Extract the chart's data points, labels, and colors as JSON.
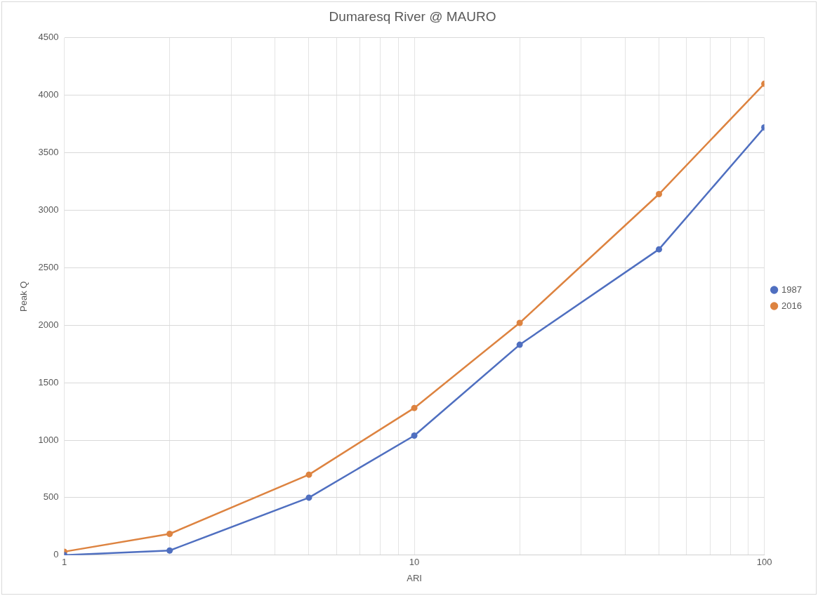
{
  "chart_data": {
    "type": "line",
    "title": "Dumaresq River @ MAURO",
    "xlabel": "ARI",
    "ylabel": "Peak Q",
    "x": [
      1,
      2,
      5,
      10,
      20,
      50,
      100
    ],
    "series": [
      {
        "name": "1987",
        "color": "#4f6fc0",
        "values": [
          0,
          40,
          500,
          1040,
          1830,
          2660,
          3720
        ]
      },
      {
        "name": "2016",
        "color": "#dd8340",
        "values": [
          30,
          185,
          700,
          1280,
          2020,
          3140,
          4100
        ]
      }
    ],
    "log": "x",
    "xlim": [
      1,
      100
    ],
    "xticks": [
      1,
      {
        "value": 2,
        "label": null
      },
      {
        "value": 3,
        "label": null
      },
      {
        "value": 4,
        "label": null
      },
      {
        "value": 5,
        "label": null
      },
      {
        "value": 6,
        "label": null
      },
      {
        "value": 7,
        "label": null
      },
      {
        "value": 8,
        "label": null
      },
      {
        "value": 9,
        "label": null
      },
      10,
      {
        "value": 20,
        "label": null
      },
      {
        "value": 30,
        "label": null
      },
      {
        "value": 40,
        "label": null
      },
      {
        "value": 50,
        "label": null
      },
      {
        "value": 60,
        "label": null
      },
      {
        "value": 70,
        "label": null
      },
      {
        "value": 80,
        "label": null
      },
      {
        "value": 90,
        "label": null
      },
      100
    ],
    "ylim": [
      0,
      4500
    ],
    "yticks": [
      0,
      500,
      1000,
      1500,
      2000,
      2500,
      3000,
      3500,
      4000,
      4500
    ],
    "grid": true,
    "legend": "right",
    "marker": "circle",
    "line_style": "solid"
  }
}
